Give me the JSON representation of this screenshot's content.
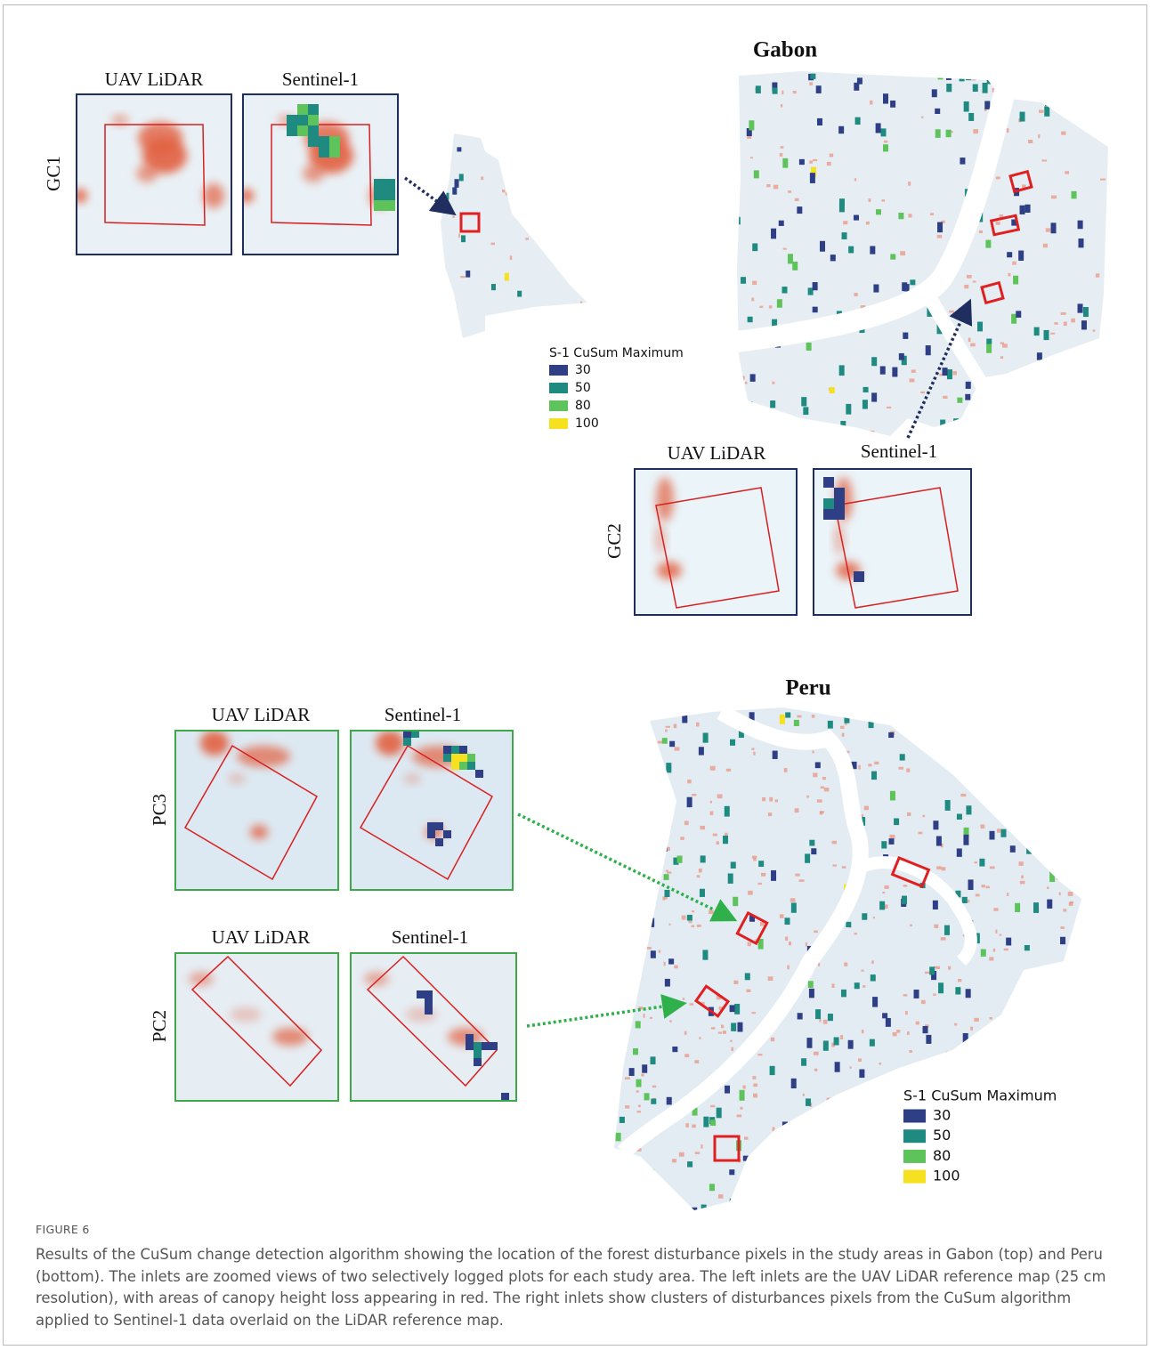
{
  "figure": {
    "gabon": {
      "title": "Gabon",
      "insets": [
        {
          "label": "GC1",
          "left": "UAV LiDAR",
          "right": "Sentinel-1"
        },
        {
          "label": "GC2",
          "left": "UAV LiDAR",
          "right": "Sentinel-1"
        }
      ],
      "legend": {
        "title": "S-1 CuSum Maximum",
        "items": [
          {
            "value": 30,
            "color": "#2e3f85"
          },
          {
            "value": 50,
            "color": "#1f8a80"
          },
          {
            "value": 80,
            "color": "#5ec35a"
          },
          {
            "value": 100,
            "color": "#f5e11f"
          }
        ]
      }
    },
    "peru": {
      "title": "Peru",
      "insets": [
        {
          "label": "PC3",
          "left": "UAV LiDAR",
          "right": "Sentinel-1"
        },
        {
          "label": "PC2",
          "left": "UAV LiDAR",
          "right": "Sentinel-1"
        }
      ],
      "legend": {
        "title": "S-1 CuSum Maximum",
        "items": [
          {
            "value": 30,
            "color": "#2e3f85"
          },
          {
            "value": 50,
            "color": "#1f8a80"
          },
          {
            "value": 80,
            "color": "#5ec35a"
          },
          {
            "value": 100,
            "color": "#f5e11f"
          }
        ]
      }
    },
    "caption": {
      "label": "FIGURE 6",
      "text": "Results of the CuSum change detection algorithm showing the location of the forest disturbance pixels in the study areas in Gabon (top) and Peru (bottom). The inlets are zoomed views of two selectively logged plots for each study area. The left inlets are the UAV LiDAR reference map (25 cm resolution), with areas of canopy height loss appearing in red. The right inlets show clusters of disturbances pixels from the CuSum algorithm applied to Sentinel-1 data overlaid on the LiDAR reference map."
    }
  }
}
